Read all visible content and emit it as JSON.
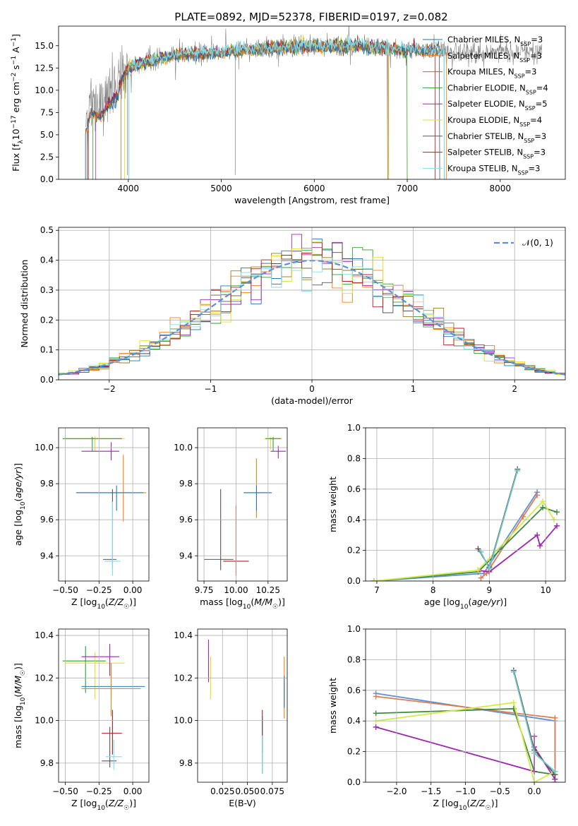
{
  "title": "PLATE=0892, MJD=52378, FIBERID=0197, z=0.082",
  "models": [
    {
      "name": "Chabrier MILES",
      "nssp": "3",
      "color": "#1f77b4"
    },
    {
      "name": "Salpeter MILES",
      "nssp": "3",
      "color": "#ff7f0e"
    },
    {
      "name": "Kroupa MILES",
      "nssp": "3",
      "color": "#9a7a1e"
    },
    {
      "name": "Chabrier ELODIE",
      "nssp": "4",
      "color": "#2ca02c"
    },
    {
      "name": "Salpeter ELODIE",
      "nssp": "5",
      "color": "#9c27b0"
    },
    {
      "name": "Kroupa ELODIE",
      "nssp": "4",
      "color": "#e0e020"
    },
    {
      "name": "Chabrier STELIB",
      "nssp": "3",
      "color": "#555555"
    },
    {
      "name": "Salpeter STELIB",
      "nssp": "3",
      "color": "#b71c1c"
    },
    {
      "name": "Kroupa STELIB",
      "nssp": "3",
      "color": "#80deea"
    }
  ],
  "weight_lines": [
    {
      "name": "Chabrier MILES",
      "color": "#5b8fd6"
    },
    {
      "name": "Salpeter MILES",
      "color": "#e07b50"
    },
    {
      "name": "Chabrier ELODIE",
      "color": "#3c8c3c"
    },
    {
      "name": "Salpeter ELODIE",
      "color": "#9c27b0"
    },
    {
      "name": "Kroupa ELODIE",
      "color": "#d4ea4a"
    },
    {
      "name": "Chabrier STELIB",
      "color": "#505a50"
    },
    {
      "name": "Kroupa STELIB",
      "color": "#72c6c6"
    }
  ],
  "chart_data": [
    {
      "id": "spectrum",
      "type": "line",
      "xlabel_main": "wavelength [Angstrom, rest frame]",
      "ylabel_html": "Flux [f<tspan baseline-shift='sub' font-size='9'>λ</tspan>10<tspan baseline-shift='super' font-size='9'>−17</tspan> erg cm<tspan baseline-shift='super' font-size='9'>−2</tspan> s<tspan baseline-shift='super' font-size='9'>−1</tspan> A<tspan baseline-shift='super' font-size='9'>−1</tspan>]",
      "xlim": [
        3250,
        8700
      ],
      "ylim": [
        0,
        17.2
      ],
      "xticks": [
        4000,
        5000,
        6000,
        7000,
        8000
      ],
      "yticks": [
        0.0,
        2.5,
        5.0,
        7.5,
        10.0,
        12.5,
        15.0
      ],
      "legend_position": "upper right",
      "grid": false,
      "data_anchor_points": {
        "x": [
          3540,
          3600,
          3700,
          3800,
          3900,
          4000,
          4200,
          4500,
          5000,
          5500,
          6000,
          6500,
          7000,
          7400
        ],
        "y": [
          6.5,
          8.5,
          8.0,
          9.5,
          10.5,
          12.5,
          13.2,
          14.0,
          14.2,
          14.8,
          14.9,
          15.0,
          14.5,
          14.3
        ]
      }
    },
    {
      "id": "residuals",
      "type": "histogram",
      "xlabel": "(data-model)/error",
      "ylabel": "Normed distribution",
      "xlim": [
        -2.5,
        2.5
      ],
      "ylim": [
        0,
        0.51
      ],
      "xticks": [
        -2,
        -1,
        0,
        1,
        2
      ],
      "yticks": [
        0.0,
        0.1,
        0.2,
        0.3,
        0.4,
        0.5
      ],
      "legend": "𝒩(0, 1)",
      "legend_position": "upper right",
      "grid": true,
      "bin_width": 0.1
    },
    {
      "id": "age_vs_Z",
      "type": "errorbar",
      "xlabel_html": "Z [log<tspan baseline-shift='sub' font-size='9'>10</tspan>(<tspan font-style='italic'>Z/Z</tspan><tspan baseline-shift='sub' font-size='9'>☉</tspan>)]",
      "ylabel_html": "age  [log<tspan baseline-shift='sub' font-size='9'>10</tspan>(<tspan font-style='italic'>age/yr</tspan>)]",
      "xlim": [
        -0.55,
        0.12
      ],
      "ylim": [
        9.26,
        10.11
      ],
      "xticks": [
        -0.5,
        -0.25,
        0.0
      ],
      "xtick_labels": [
        "−0.50",
        "−0.25",
        "0.00"
      ],
      "yticks": [
        9.4,
        9.6,
        9.8,
        10.0
      ],
      "points": [
        {
          "model": 5,
          "x": -0.28,
          "y": 10.05,
          "xerr": [
            0.22,
            0.22
          ],
          "yerr": [
            0.07,
            0.01
          ]
        },
        {
          "model": 3,
          "x": -0.3,
          "y": 10.05,
          "xerr": [
            0.22,
            0.22
          ],
          "yerr": [
            0.07,
            0.01
          ]
        },
        {
          "model": 4,
          "x": -0.16,
          "y": 9.98,
          "xerr": [
            0.22,
            0.06
          ],
          "yerr": [
            0.05,
            0.05
          ]
        },
        {
          "model": 1,
          "x": -0.07,
          "y": 9.75,
          "xerr": [
            0.35,
            0.17
          ],
          "yerr": [
            0.16,
            0.21
          ]
        },
        {
          "model": 0,
          "x": -0.12,
          "y": 9.75,
          "xerr": [
            0.3,
            0.2
          ],
          "yerr": [
            0.1,
            0.04
          ]
        },
        {
          "model": 6,
          "x": -0.15,
          "y": 9.38,
          "xerr": [
            0.07,
            0.03
          ],
          "yerr": [
            0.05,
            0.39
          ]
        },
        {
          "model": 8,
          "x": -0.15,
          "y": 9.37,
          "xerr": [
            0.06,
            0.06
          ],
          "yerr": [
            0.08,
            0.33
          ]
        }
      ]
    },
    {
      "id": "age_vs_mass",
      "type": "errorbar",
      "xlabel_html": "mass [log<tspan baseline-shift='sub' font-size='9'>10</tspan>(<tspan font-style='italic'>M/M</tspan><tspan baseline-shift='sub' font-size='9'>☉</tspan>)]",
      "xlim": [
        9.7,
        10.4
      ],
      "ylim": [
        9.26,
        10.11
      ],
      "xticks": [
        9.75,
        10.0,
        10.25
      ],
      "xtick_labels": [
        "9.75",
        "10.00",
        "10.25"
      ],
      "yticks": [
        9.4,
        9.6,
        9.8,
        10.0
      ],
      "points": [
        {
          "model": 5,
          "x": 10.27,
          "y": 10.05,
          "xerr": [
            0.05,
            0.09
          ],
          "yerr": [
            0.06,
            0.01
          ]
        },
        {
          "model": 3,
          "x": 10.29,
          "y": 10.05,
          "xerr": [
            0.06,
            0.06
          ],
          "yerr": [
            0.07,
            0.01
          ]
        },
        {
          "model": 4,
          "x": 10.33,
          "y": 9.98,
          "xerr": [
            0.06,
            0.06
          ],
          "yerr": [
            0.04,
            0.03
          ]
        },
        {
          "model": 1,
          "x": 10.16,
          "y": 9.75,
          "xerr": [
            0.1,
            0.09
          ],
          "yerr": [
            0.14,
            0.19
          ]
        },
        {
          "model": 0,
          "x": 10.16,
          "y": 9.75,
          "xerr": [
            0.1,
            0.12
          ],
          "yerr": [
            0.1,
            0.04
          ]
        },
        {
          "model": 6,
          "x": 9.88,
          "y": 9.38,
          "xerr": [
            0.13,
            0.1
          ],
          "yerr": [
            0.06,
            0.39
          ]
        },
        {
          "model": 7,
          "x": 10.0,
          "y": 9.37,
          "xerr": [
            0.1,
            0.1
          ],
          "yerr": [
            0.08,
            0.31
          ]
        }
      ]
    },
    {
      "id": "weight_vs_age",
      "type": "line",
      "xlabel_html": "age  [log<tspan baseline-shift='sub' font-size='9'>10</tspan>(<tspan font-style='italic'>age/yr</tspan>)]",
      "ylabel": "mass weight",
      "xlim": [
        6.8,
        10.35
      ],
      "ylim": [
        0,
        1.0
      ],
      "xticks": [
        7,
        8,
        9,
        10
      ],
      "yticks": [
        0.0,
        0.2,
        0.4,
        0.6,
        0.8,
        1.0
      ],
      "series": [
        {
          "line": 0,
          "x": [
            6.95,
            8.9,
            9.85
          ],
          "y": [
            0.0,
            0.05,
            0.58
          ]
        },
        {
          "line": 1,
          "x": [
            8.85,
            8.95,
            9.6,
            9.85
          ],
          "y": [
            0.02,
            0.05,
            0.42,
            0.56
          ]
        },
        {
          "line": 2,
          "x": [
            6.95,
            8.8,
            9.95,
            10.2
          ],
          "y": [
            0.0,
            0.06,
            0.48,
            0.45
          ]
        },
        {
          "line": 3,
          "x": [
            8.8,
            9.0,
            9.85,
            9.9,
            10.2
          ],
          "y": [
            0.07,
            0.06,
            0.3,
            0.23,
            0.36
          ]
        },
        {
          "line": 4,
          "x": [
            6.95,
            8.8,
            9.95,
            10.15
          ],
          "y": [
            0.0,
            0.07,
            0.52,
            0.4
          ]
        },
        {
          "line": 5,
          "x": [
            8.8,
            9.0,
            9.5
          ],
          "y": [
            0.21,
            0.09,
            0.73
          ]
        },
        {
          "line": 6,
          "x": [
            8.85,
            9.0,
            9.5
          ],
          "y": [
            0.19,
            0.08,
            0.72
          ]
        }
      ]
    },
    {
      "id": "mass_vs_Z",
      "type": "errorbar",
      "xlabel_html": "Z [log<tspan baseline-shift='sub' font-size='9'>10</tspan>(<tspan font-style='italic'>Z/Z</tspan><tspan baseline-shift='sub' font-size='9'>☉</tspan>)]",
      "ylabel_html": "mass [log<tspan baseline-shift='sub' font-size='9'>10</tspan>(<tspan font-style='italic'>M/M</tspan><tspan baseline-shift='sub' font-size='9'>☉</tspan>)]",
      "xlim": [
        -0.55,
        0.12
      ],
      "ylim": [
        9.71,
        10.43
      ],
      "xticks": [
        -0.5,
        -0.25,
        0.0
      ],
      "xtick_labels": [
        "−0.50",
        "−0.25",
        "0.00"
      ],
      "yticks": [
        9.8,
        10.0,
        10.2,
        10.4
      ],
      "points": [
        {
          "model": 3,
          "x": -0.35,
          "y": 10.28,
          "xerr": [
            0.17,
            0.15
          ],
          "yerr": [
            0.15,
            0.07
          ]
        },
        {
          "model": 5,
          "x": -0.28,
          "y": 10.27,
          "xerr": [
            0.22,
            0.22
          ],
          "yerr": [
            0.17,
            0.05
          ]
        },
        {
          "model": 4,
          "x": -0.17,
          "y": 10.3,
          "xerr": [
            0.21,
            0.07
          ],
          "yerr": [
            0.09,
            0.06
          ]
        },
        {
          "model": 0,
          "x": -0.16,
          "y": 10.16,
          "xerr": [
            0.22,
            0.25
          ],
          "yerr": [
            0.05,
            0.06
          ]
        },
        {
          "model": 1,
          "x": -0.16,
          "y": 10.15,
          "xerr": [
            0.22,
            0.22
          ],
          "yerr": [
            0.13,
            0.12
          ]
        },
        {
          "model": 7,
          "x": -0.15,
          "y": 9.94,
          "xerr": [
            0.08,
            0.07
          ],
          "yerr": [
            0.1,
            0.11
          ]
        },
        {
          "model": 6,
          "x": -0.17,
          "y": 9.81,
          "xerr": [
            0.06,
            0.05
          ],
          "yerr": [
            0.03,
            0.16
          ]
        },
        {
          "model": 8,
          "x": -0.14,
          "y": 9.83,
          "xerr": [
            0.06,
            0.06
          ],
          "yerr": [
            0.06,
            0.08
          ]
        }
      ]
    },
    {
      "id": "mass_vs_ebv",
      "type": "errorbar",
      "xlabel": "E(B-V)",
      "xlim": [
        0.0,
        0.09
      ],
      "ylim": [
        9.71,
        10.43
      ],
      "xticks": [
        0.025,
        0.05,
        0.075
      ],
      "xtick_labels": [
        "0.025",
        "0.050",
        "0.075"
      ],
      "yticks": [
        9.8,
        10.0,
        10.2,
        10.4
      ],
      "points": [
        {
          "model": 4,
          "x": 0.011,
          "y": 10.28,
          "xerr": [
            0,
            0
          ],
          "yerr": [
            0.1,
            0.1
          ]
        },
        {
          "model": 5,
          "x": 0.013,
          "y": 10.2,
          "xerr": [
            0,
            0
          ],
          "yerr": [
            0.1,
            0.1
          ]
        },
        {
          "model": 7,
          "x": 0.065,
          "y": 9.95,
          "xerr": [
            0,
            0
          ],
          "yerr": [
            0.1,
            0.1
          ]
        },
        {
          "model": 6,
          "x": 0.065,
          "y": 9.83,
          "xerr": [
            0,
            0
          ],
          "yerr": [
            0.08,
            0.19
          ]
        },
        {
          "model": 8,
          "x": 0.065,
          "y": 9.85,
          "xerr": [
            0,
            0
          ],
          "yerr": [
            0.1,
            0.08
          ]
        },
        {
          "model": 1,
          "x": 0.087,
          "y": 10.15,
          "xerr": [
            0,
            0
          ],
          "yerr": [
            0.14,
            0.15
          ]
        },
        {
          "model": 0,
          "x": 0.087,
          "y": 10.16,
          "xerr": [
            0,
            0
          ],
          "yerr": [
            0.1,
            0.05
          ]
        }
      ]
    },
    {
      "id": "weight_vs_Z",
      "type": "line",
      "xlabel_html": "Z [log<tspan baseline-shift='sub' font-size='9'>10</tspan>(<tspan font-style='italic'>Z/Z</tspan><tspan baseline-shift='sub' font-size='9'>☉</tspan>)]",
      "ylabel": "mass weight",
      "xlim": [
        -2.45,
        0.45
      ],
      "ylim": [
        0,
        1.0
      ],
      "xticks": [
        -2.0,
        -1.5,
        -1.0,
        -0.5,
        0.0
      ],
      "xtick_labels": [
        "−2.0",
        "−1.5",
        "−1.0",
        "−0.5",
        "0.0"
      ],
      "yticks": [
        0.0,
        0.2,
        0.4,
        0.6,
        0.8,
        1.0
      ],
      "series": [
        {
          "line": 0,
          "x": [
            -2.3,
            0.3,
            0.3
          ],
          "y": [
            0.58,
            0.4,
            0.0
          ]
        },
        {
          "line": 1,
          "x": [
            -2.3,
            0.3,
            0.3
          ],
          "y": [
            0.56,
            0.42,
            0.02
          ]
        },
        {
          "line": 2,
          "x": [
            -2.3,
            -0.3,
            0.0,
            0.3
          ],
          "y": [
            0.45,
            0.48,
            0.07,
            0.05
          ]
        },
        {
          "line": 3,
          "x": [
            -2.3,
            0.0,
            0.0,
            0.0,
            0.3
          ],
          "y": [
            0.36,
            0.07,
            0.3,
            0.23,
            0.02
          ]
        },
        {
          "line": 4,
          "x": [
            -2.3,
            -0.3,
            0.0,
            0.3
          ],
          "y": [
            0.4,
            0.52,
            0.0,
            0.07
          ]
        },
        {
          "line": 5,
          "x": [
            -0.3,
            0.0,
            0.3
          ],
          "y": [
            0.73,
            0.21,
            0.05
          ]
        },
        {
          "line": 6,
          "x": [
            -0.3,
            0.0,
            0.3
          ],
          "y": [
            0.72,
            0.19,
            0.07
          ]
        }
      ]
    }
  ]
}
